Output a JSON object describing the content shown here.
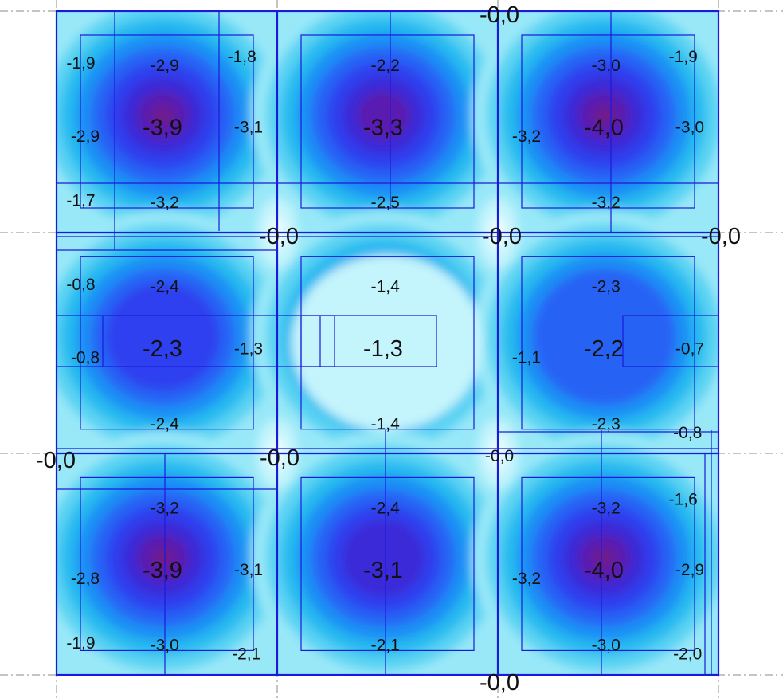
{
  "colors": {
    "background": "#ffffff",
    "frame": "#1a1adb",
    "axis_line": "#888888",
    "scale": [
      "#e8fbff",
      "#c4f4fc",
      "#98e8f8",
      "#5ad3f3",
      "#27baf0",
      "#1e90f5",
      "#2563f5",
      "#2d40ef",
      "#3a2ad8",
      "#5a1fb0",
      "#701a8a"
    ]
  },
  "contour_plot": {
    "cells": [
      {
        "row": 0,
        "col": 0,
        "center": "-3,9",
        "ne": "-1,8",
        "nw": "-1,9",
        "north": "-2,9",
        "west": "-2,9",
        "east": "-3,1",
        "sw": "-1,7",
        "south": "-3,2"
      },
      {
        "row": 0,
        "col": 1,
        "center": "-3,3",
        "north": "-2,2",
        "south": "-2,5"
      },
      {
        "row": 0,
        "col": 2,
        "center": "-4,0",
        "north": "-3,0",
        "ne": "-1,9",
        "west": "-3,2",
        "east": "-3,0",
        "south": "-3,2"
      },
      {
        "row": 1,
        "col": 0,
        "center": "-2,3",
        "nw": "-0,8",
        "north": "-2,4",
        "west": "-0,8",
        "east": "-1,3",
        "south": "-2,4"
      },
      {
        "row": 1,
        "col": 1,
        "center": "-1,3",
        "north": "-1,4",
        "south": "-1,4"
      },
      {
        "row": 1,
        "col": 2,
        "center": "-2,2",
        "north": "-2,3",
        "west": "-1,1",
        "east": "-0,7",
        "south": "-2,3",
        "se": "-0,8"
      },
      {
        "row": 2,
        "col": 0,
        "center": "-3,9",
        "north": "-3,2",
        "west": "-2,8",
        "east": "-3,1",
        "sw": "-1,9",
        "south": "-3,0",
        "se": "-2,1"
      },
      {
        "row": 2,
        "col": 1,
        "center": "-3,1",
        "north": "-2,4",
        "south": "-2,1"
      },
      {
        "row": 2,
        "col": 2,
        "center": "-4,0",
        "north": "-3,2",
        "ne": "-1,6",
        "west": "-3,2",
        "east": "-2,9",
        "south": "-3,0",
        "se": "-2,0"
      }
    ],
    "support_labels": {
      "top": "-0,0",
      "bottom": "-0,0",
      "row1_left": "-0,0",
      "row1_mid": "-0,0",
      "row1_right": "-0,0",
      "row2_left": "-0,0",
      "row2_mid": "-0,0",
      "row2_right": "-0,0"
    }
  }
}
